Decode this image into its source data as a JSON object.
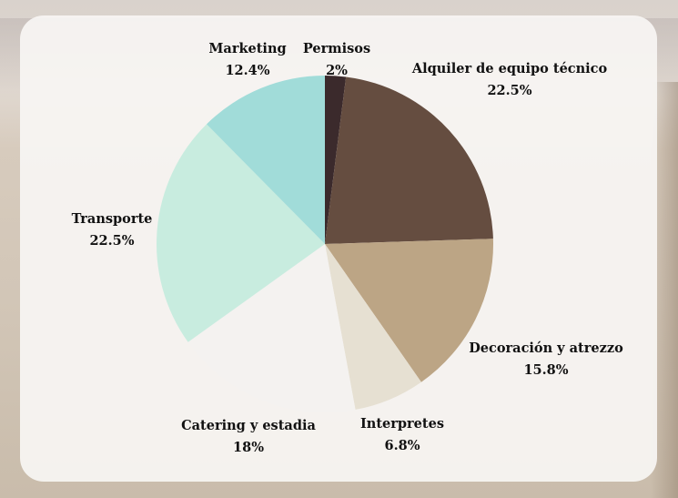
{
  "chart_data": {
    "type": "pie",
    "title": "",
    "slices": [
      {
        "label": "Permisos",
        "value": 2,
        "value_label": "2%",
        "color": "#3b2a2c"
      },
      {
        "label": "Alquiler de equipo técnico",
        "value": 22.5,
        "value_label": "22.5%",
        "color": "#654d40"
      },
      {
        "label": "Decoración y atrezzo",
        "value": 15.8,
        "value_label": "15.8%",
        "color": "#bca585"
      },
      {
        "label": "Interpretes",
        "value": 6.8,
        "value_label": "6.8%",
        "color": "#e6e0d2"
      },
      {
        "label": "Catering y estadia",
        "value": 18,
        "value_label": "18%",
        "color": "#f4f2f0"
      },
      {
        "label": "Transporte",
        "value": 22.5,
        "value_label": "22.5%",
        "color": "#c8ecdf"
      },
      {
        "label": "Marketing",
        "value": 12.4,
        "value_label": "12.4%",
        "color": "#a1dcd9"
      }
    ],
    "start_angle": "top",
    "direction": "clockwise",
    "legend": "none"
  }
}
